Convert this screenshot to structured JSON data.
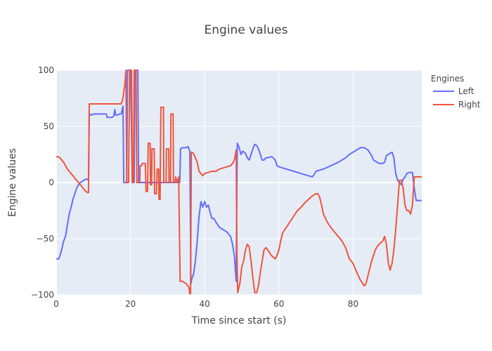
{
  "chart_data": {
    "type": "line",
    "title": "Engine values",
    "xlabel": "Time since start (s)",
    "ylabel": "Engine values",
    "xlim": [
      0,
      98.5
    ],
    "ylim": [
      -100,
      100
    ],
    "xticks": [
      0,
      20,
      40,
      60,
      80
    ],
    "yticks": [
      100,
      50,
      0,
      -50,
      -100
    ],
    "ytick_labels": [
      "100",
      "50",
      "0",
      "−50",
      "−100"
    ],
    "grid": true,
    "legend": {
      "title": "Engines",
      "placement": "top-right outside"
    },
    "colors": {
      "plot_bg": "#E5ECF6",
      "grid": "#ffffff",
      "Left": "#636EFA",
      "Right": "#EF553B"
    },
    "series": [
      {
        "name": "Left",
        "color": "#636EFA",
        "points": [
          [
            0,
            -68
          ],
          [
            0.7,
            -68
          ],
          [
            1.3,
            -62
          ],
          [
            2,
            -52
          ],
          [
            2.5,
            -48
          ],
          [
            3,
            -38
          ],
          [
            3.5,
            -28
          ],
          [
            4,
            -22
          ],
          [
            4.5,
            -15
          ],
          [
            5,
            -10
          ],
          [
            5.5,
            -5
          ],
          [
            6,
            -2
          ],
          [
            6.5,
            0
          ],
          [
            7,
            1
          ],
          [
            8,
            3
          ],
          [
            8.5,
            3
          ],
          [
            8.7,
            2
          ],
          [
            8.9,
            61
          ],
          [
            9.5,
            60
          ],
          [
            10,
            61
          ],
          [
            10.5,
            61
          ],
          [
            13.5,
            61
          ],
          [
            13.7,
            58
          ],
          [
            14.5,
            58
          ],
          [
            15,
            58
          ],
          [
            15.5,
            59
          ],
          [
            15.8,
            65
          ],
          [
            16,
            60
          ],
          [
            16.5,
            60
          ],
          [
            17,
            61
          ],
          [
            17.5,
            61
          ],
          [
            18,
            68
          ],
          [
            18.2,
            0
          ],
          [
            19,
            0
          ],
          [
            19.2,
            100
          ],
          [
            20,
            100
          ],
          [
            20.5,
            0
          ],
          [
            21,
            0
          ],
          [
            21.2,
            100
          ],
          [
            22,
            100
          ],
          [
            22.2,
            0
          ],
          [
            22.5,
            0
          ],
          [
            23,
            0
          ],
          [
            25,
            0
          ],
          [
            26.5,
            0
          ],
          [
            28,
            0
          ],
          [
            29.5,
            0
          ],
          [
            31,
            0
          ],
          [
            32,
            0
          ],
          [
            32.5,
            0
          ],
          [
            33,
            0
          ],
          [
            33.3,
            0
          ],
          [
            33.5,
            30
          ],
          [
            34,
            31
          ],
          [
            34.5,
            31
          ],
          [
            35,
            31
          ],
          [
            35.5,
            32
          ],
          [
            36,
            28
          ],
          [
            36.3,
            -90
          ],
          [
            36.6,
            -85
          ],
          [
            37,
            -82
          ],
          [
            37.5,
            -70
          ],
          [
            38,
            -52
          ],
          [
            38.5,
            -30
          ],
          [
            39,
            -17
          ],
          [
            39.5,
            -22
          ],
          [
            40,
            -17
          ],
          [
            40.5,
            -22
          ],
          [
            41,
            -20
          ],
          [
            41.5,
            -27
          ],
          [
            42,
            -32
          ],
          [
            42.5,
            -32
          ],
          [
            43,
            -35
          ],
          [
            44,
            -40
          ],
          [
            45,
            -42
          ],
          [
            46,
            -44
          ],
          [
            47,
            -48
          ],
          [
            47.5,
            -55
          ],
          [
            48,
            -65
          ],
          [
            48.5,
            -88
          ],
          [
            48.8,
            35
          ],
          [
            49.3,
            31
          ],
          [
            49.8,
            25
          ],
          [
            50.3,
            28
          ],
          [
            51,
            26
          ],
          [
            51.5,
            22
          ],
          [
            52,
            20
          ],
          [
            52.5,
            25
          ],
          [
            53,
            30
          ],
          [
            53.5,
            34
          ],
          [
            54,
            33
          ],
          [
            54.5,
            30
          ],
          [
            55,
            25
          ],
          [
            55.5,
            20
          ],
          [
            56,
            20
          ],
          [
            56.5,
            22
          ],
          [
            57,
            22
          ],
          [
            58,
            23
          ],
          [
            58.5,
            22
          ],
          [
            59,
            20
          ],
          [
            59.5,
            15
          ],
          [
            60,
            14
          ],
          [
            62,
            12
          ],
          [
            64,
            10
          ],
          [
            66,
            8
          ],
          [
            68,
            6
          ],
          [
            69,
            5
          ],
          [
            69.5,
            7
          ],
          [
            70,
            10
          ],
          [
            72,
            12
          ],
          [
            74,
            15
          ],
          [
            76,
            18
          ],
          [
            78,
            22
          ],
          [
            79,
            25
          ],
          [
            80,
            27
          ],
          [
            81,
            29
          ],
          [
            82,
            31
          ],
          [
            83,
            31
          ],
          [
            84,
            29
          ],
          [
            85,
            24
          ],
          [
            85.5,
            20
          ],
          [
            86,
            19
          ],
          [
            87,
            17
          ],
          [
            88,
            17
          ],
          [
            88.5,
            18
          ],
          [
            89,
            24
          ],
          [
            89.5,
            25
          ],
          [
            90,
            26
          ],
          [
            90.5,
            27
          ],
          [
            91,
            22
          ],
          [
            91.5,
            8
          ],
          [
            92,
            2
          ],
          [
            93,
            -2
          ],
          [
            93.5,
            3
          ],
          [
            94,
            5
          ],
          [
            94.5,
            8
          ],
          [
            95,
            9
          ],
          [
            96,
            9
          ],
          [
            96.5,
            -5
          ],
          [
            97,
            -16
          ],
          [
            98.5,
            -16
          ]
        ]
      },
      {
        "name": "Right",
        "color": "#EF553B",
        "points": [
          [
            0,
            23
          ],
          [
            0.5,
            23
          ],
          [
            1,
            22
          ],
          [
            1.5,
            20
          ],
          [
            2,
            18
          ],
          [
            2.5,
            15
          ],
          [
            3,
            12
          ],
          [
            3.5,
            10
          ],
          [
            4,
            8
          ],
          [
            4.5,
            6
          ],
          [
            5,
            4
          ],
          [
            5.5,
            2
          ],
          [
            6,
            0
          ],
          [
            6.5,
            -2
          ],
          [
            7,
            -4
          ],
          [
            7.5,
            -6
          ],
          [
            8,
            -8
          ],
          [
            8.5,
            -9
          ],
          [
            8.7,
            -9
          ],
          [
            8.9,
            70
          ],
          [
            10,
            70
          ],
          [
            13,
            70
          ],
          [
            16,
            70
          ],
          [
            17.5,
            70
          ],
          [
            18,
            75
          ],
          [
            18.5,
            88
          ],
          [
            18.8,
            100
          ],
          [
            19,
            0
          ],
          [
            19.5,
            0
          ],
          [
            19.8,
            100
          ],
          [
            20.3,
            100
          ],
          [
            20.5,
            0
          ],
          [
            20.8,
            0
          ],
          [
            21,
            100
          ],
          [
            21.5,
            100
          ],
          [
            21.7,
            0
          ],
          [
            22.5,
            0
          ],
          [
            22.6,
            15
          ],
          [
            23,
            15
          ],
          [
            23.2,
            17
          ],
          [
            24,
            17
          ],
          [
            24.2,
            -8
          ],
          [
            24.6,
            -8
          ],
          [
            24.8,
            35
          ],
          [
            25.3,
            35
          ],
          [
            25.4,
            -2
          ],
          [
            25.7,
            -2
          ],
          [
            25.8,
            30
          ],
          [
            26.4,
            30
          ],
          [
            26.5,
            -10
          ],
          [
            27,
            -10
          ],
          [
            27.2,
            12
          ],
          [
            27.6,
            12
          ],
          [
            27.7,
            -15
          ],
          [
            28,
            -15
          ],
          [
            28.2,
            67
          ],
          [
            28.9,
            67
          ],
          [
            29,
            0
          ],
          [
            29.6,
            0
          ],
          [
            29.7,
            30
          ],
          [
            30.3,
            30
          ],
          [
            30.4,
            0
          ],
          [
            30.8,
            0
          ],
          [
            30.9,
            61
          ],
          [
            31.5,
            61
          ],
          [
            31.6,
            0
          ],
          [
            32,
            0
          ],
          [
            32.2,
            5
          ],
          [
            32.6,
            0
          ],
          [
            33,
            5
          ],
          [
            33.4,
            -88
          ],
          [
            34,
            -88
          ],
          [
            35,
            -90
          ],
          [
            35.5,
            -92
          ],
          [
            35.8,
            -94
          ],
          [
            36,
            -99
          ],
          [
            36.2,
            -99
          ],
          [
            36.4,
            27
          ],
          [
            37,
            26
          ],
          [
            37.5,
            22
          ],
          [
            38,
            18
          ],
          [
            38.5,
            10
          ],
          [
            39,
            8
          ],
          [
            39.5,
            6
          ],
          [
            40,
            8
          ],
          [
            41,
            9
          ],
          [
            42,
            10
          ],
          [
            43,
            10
          ],
          [
            44,
            12
          ],
          [
            45,
            13
          ],
          [
            46,
            14
          ],
          [
            47,
            15
          ],
          [
            47.5,
            17
          ],
          [
            48,
            20
          ],
          [
            48.3,
            25
          ],
          [
            48.5,
            29
          ],
          [
            48.7,
            -60
          ],
          [
            48.9,
            -98
          ],
          [
            49.5,
            -90
          ],
          [
            50,
            -75
          ],
          [
            50.5,
            -70
          ],
          [
            51,
            -60
          ],
          [
            51.5,
            -55
          ],
          [
            52,
            -57
          ],
          [
            52.5,
            -70
          ],
          [
            53,
            -85
          ],
          [
            53.5,
            -98
          ],
          [
            54,
            -98
          ],
          [
            54.5,
            -92
          ],
          [
            55,
            -80
          ],
          [
            55.5,
            -70
          ],
          [
            56,
            -60
          ],
          [
            56.5,
            -58
          ],
          [
            57,
            -60
          ],
          [
            58,
            -65
          ],
          [
            59,
            -68
          ],
          [
            59.5,
            -65
          ],
          [
            60,
            -60
          ],
          [
            60.5,
            -52
          ],
          [
            61,
            -45
          ],
          [
            62,
            -40
          ],
          [
            63,
            -35
          ],
          [
            64,
            -30
          ],
          [
            65,
            -25
          ],
          [
            66,
            -22
          ],
          [
            67,
            -18
          ],
          [
            68,
            -15
          ],
          [
            69,
            -12
          ],
          [
            70,
            -10
          ],
          [
            70.5,
            -10
          ],
          [
            71,
            -13
          ],
          [
            71.5,
            -20
          ],
          [
            72,
            -28
          ],
          [
            73,
            -35
          ],
          [
            74,
            -40
          ],
          [
            75,
            -44
          ],
          [
            76,
            -48
          ],
          [
            77,
            -52
          ],
          [
            78,
            -58
          ],
          [
            79,
            -68
          ],
          [
            80,
            -72
          ],
          [
            81,
            -80
          ],
          [
            82,
            -87
          ],
          [
            83,
            -92
          ],
          [
            83.5,
            -90
          ],
          [
            84,
            -83
          ],
          [
            85,
            -70
          ],
          [
            86,
            -60
          ],
          [
            86.5,
            -57
          ],
          [
            87,
            -55
          ],
          [
            88,
            -52
          ],
          [
            88.5,
            -48
          ],
          [
            89,
            -55
          ],
          [
            89.5,
            -72
          ],
          [
            90,
            -78
          ],
          [
            90.5,
            -72
          ],
          [
            91,
            -60
          ],
          [
            91.5,
            -42
          ],
          [
            92,
            -20
          ],
          [
            92.5,
            2
          ],
          [
            93,
            2
          ],
          [
            93.5,
            -5
          ],
          [
            94,
            -20
          ],
          [
            94.5,
            -25
          ],
          [
            95,
            -25
          ],
          [
            95.5,
            -28
          ],
          [
            96,
            -20
          ],
          [
            96.5,
            5
          ],
          [
            97,
            5
          ],
          [
            98.5,
            5
          ]
        ]
      }
    ]
  }
}
